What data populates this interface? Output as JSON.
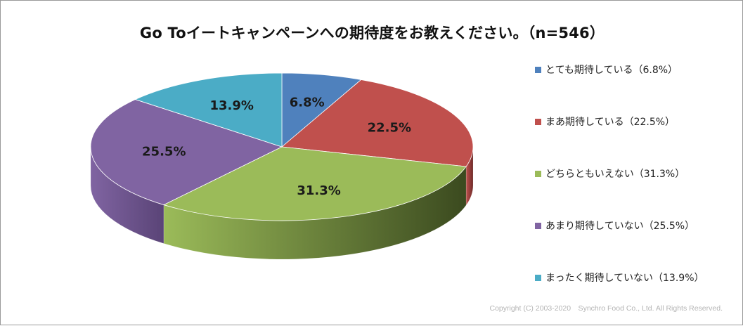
{
  "chart_data": {
    "type": "pie",
    "title": "Go Toイートキャンペーンへの期待度をお教えください。（n=546）",
    "slices": [
      {
        "label": "とても期待している（6.8%）",
        "value": 6.8,
        "data_label": "6.8%",
        "color": "#4f81bd",
        "dark": "#2c4a70"
      },
      {
        "label": "まあ期待している（22.5%）",
        "value": 22.5,
        "data_label": "22.5%",
        "color": "#c0504d",
        "dark": "#6e2b29"
      },
      {
        "label": "どちらともいえない（31.3%）",
        "value": 31.3,
        "data_label": "31.3%",
        "color": "#9bbb59",
        "dark": "#3b4a1f"
      },
      {
        "label": "あまり期待していない（25.5%）",
        "value": 25.5,
        "data_label": "25.5%",
        "color": "#8064a2",
        "dark": "#5a4477"
      },
      {
        "label": "まったく期待していない（13.9%）",
        "value": 13.9,
        "data_label": "13.9%",
        "color": "#4bacc6",
        "dark": "#2a6b7c"
      }
    ],
    "legend_position": "right"
  },
  "copyright": "Copyright (C) 2003-2020　Synchro Food Co., Ltd. All Rights Reserved."
}
